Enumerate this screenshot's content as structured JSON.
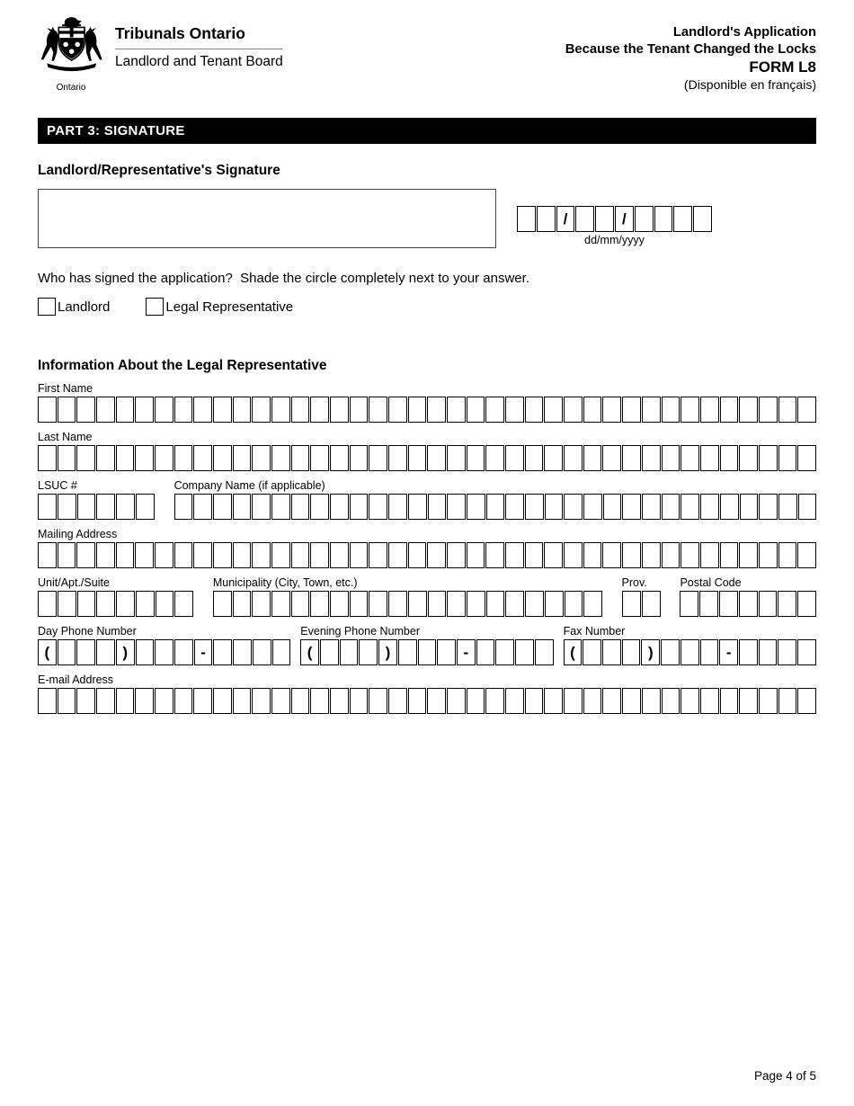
{
  "header": {
    "org_name": "Tribunals Ontario",
    "org_division": "Landlord and Tenant Board",
    "crest_caption": "Ontario",
    "application_title_line1": "Landlord's Application",
    "application_title_line2": "Because the Tenant Changed the Locks",
    "form_code": "FORM L8",
    "language_note": "(Disponible en français)"
  },
  "part_banner": "PART 3: SIGNATURE",
  "signature_section": {
    "heading": "Landlord/Representative's Signature",
    "date_cells": [
      "",
      "",
      "/",
      "",
      "",
      "/",
      "",
      "",
      "",
      ""
    ],
    "date_caption": "dd/mm/yyyy",
    "question": "Who has signed the application?  Shade the circle completely next to your answer.",
    "options": [
      {
        "label": "Landlord"
      },
      {
        "label": "Legal Representative"
      }
    ]
  },
  "rep_section": {
    "heading": "Information About the Legal Representative",
    "rows": [
      {
        "single": true,
        "fields": [
          {
            "name": "first-name",
            "label": "First Name",
            "cells": 40
          }
        ]
      },
      {
        "single": true,
        "fields": [
          {
            "name": "last-name",
            "label": "Last Name",
            "cells": 40
          }
        ]
      },
      {
        "single": false,
        "fields": [
          {
            "name": "lsuc-number",
            "label": "LSUC #",
            "cells": 6
          },
          {
            "name": "company-name",
            "label": "Company Name (if applicable)",
            "cells": 33
          }
        ]
      },
      {
        "single": true,
        "fields": [
          {
            "name": "mailing-address",
            "label": "Mailing Address",
            "cells": 40
          }
        ]
      },
      {
        "single": false,
        "fields": [
          {
            "name": "unit-apt-suite",
            "label": "Unit/Apt./Suite",
            "cells": 8
          },
          {
            "name": "municipality",
            "label": "Municipality (City, Town, etc.)",
            "cells": 20
          },
          {
            "name": "province",
            "label": "Prov.",
            "cells": 2
          },
          {
            "name": "postal-code",
            "label": "Postal Code",
            "cells": 7
          }
        ]
      },
      {
        "single": false,
        "fields": [
          {
            "name": "day-phone-number",
            "label": "Day Phone Number",
            "cells": 13,
            "prefill": {
              "0": "(",
              "4": ")",
              "8": "-"
            }
          },
          {
            "name": "evening-phone-number",
            "label": "Evening Phone Number",
            "cells": 13,
            "prefill": {
              "0": "(",
              "4": ")",
              "8": "-"
            }
          },
          {
            "name": "fax-number",
            "label": "Fax Number",
            "cells": 13,
            "prefill": {
              "0": "(",
              "4": ")",
              "8": "-"
            }
          }
        ]
      },
      {
        "single": true,
        "fields": [
          {
            "name": "email-address",
            "label": "E-mail Address",
            "cells": 40
          }
        ]
      }
    ]
  },
  "footer": {
    "page_label": "Page 4 of 5"
  }
}
